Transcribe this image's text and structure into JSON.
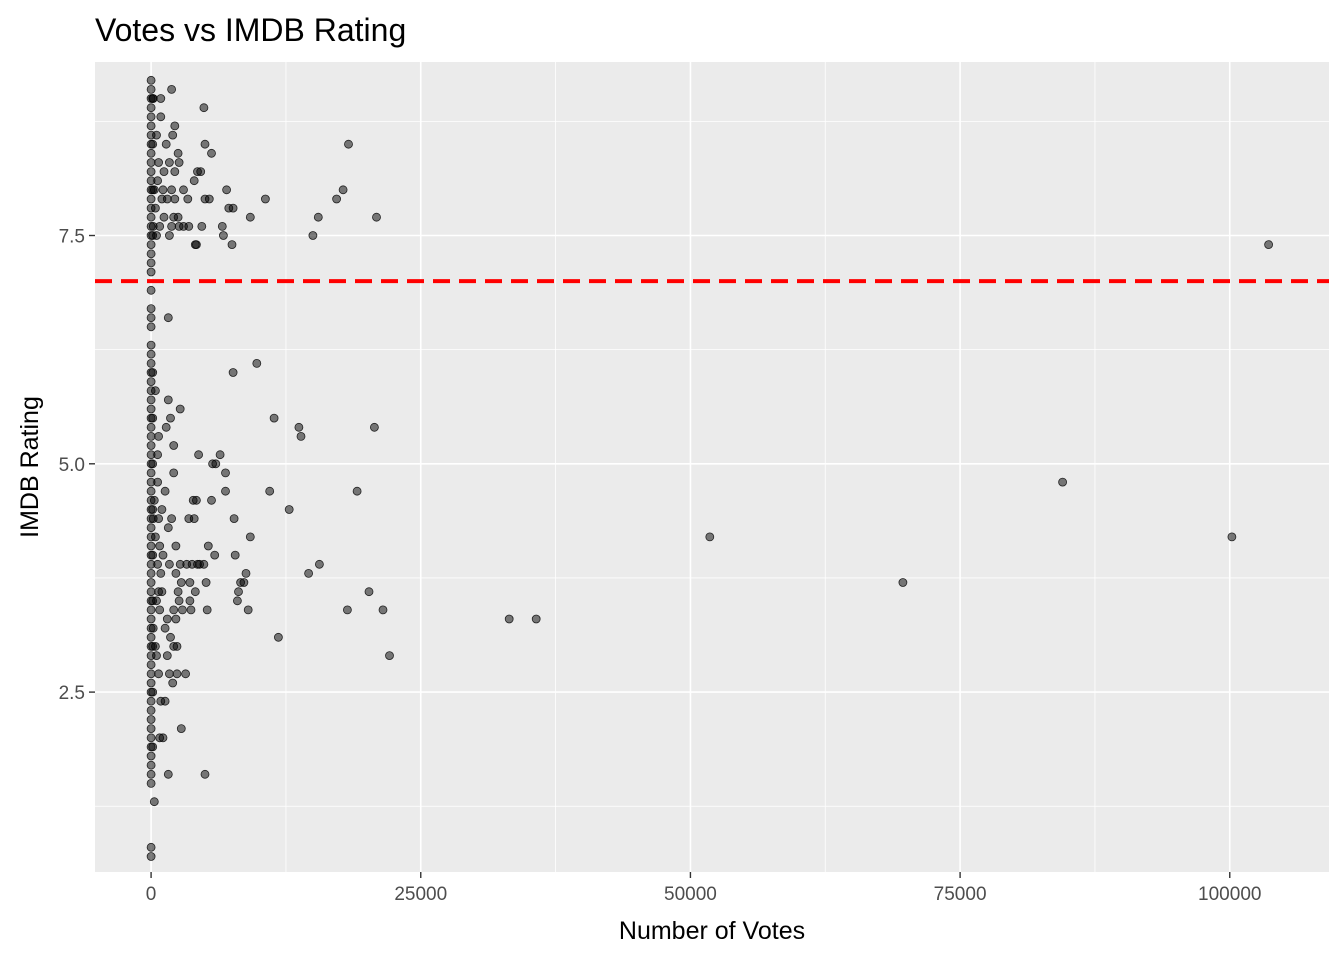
{
  "chart_data": {
    "type": "scatter",
    "title": "Votes vs IMDB Rating",
    "xlabel": "Number of Votes",
    "ylabel": "IMDB Rating",
    "xlim": [
      -5200,
      109200
    ],
    "ylim": [
      0.53,
      9.4
    ],
    "x_ticks": [
      0,
      25000,
      50000,
      75000,
      100000
    ],
    "x_tick_labels": [
      "0",
      "25000",
      "50000",
      "75000",
      "100000"
    ],
    "y_ticks": [
      2.5,
      5.0,
      7.5
    ],
    "y_tick_labels": [
      "2.5",
      "5.0",
      "7.5"
    ],
    "grid": true,
    "background": "#ebebeb",
    "grid_color": "#ffffff",
    "point_color": "#000000",
    "point_alpha": 0.5,
    "reference_line": {
      "orientation": "horizontal",
      "y": 7.0,
      "style": "dashed",
      "color": "#ff0000"
    },
    "points": [
      [
        103600,
        7.4
      ],
      [
        100200,
        4.2
      ],
      [
        84500,
        4.8
      ],
      [
        69700,
        3.7
      ],
      [
        51800,
        4.2
      ],
      [
        35700,
        3.3
      ],
      [
        33200,
        3.3
      ],
      [
        22100,
        2.9
      ],
      [
        21500,
        3.4
      ],
      [
        20900,
        7.7
      ],
      [
        20700,
        5.4
      ],
      [
        20200,
        3.6
      ],
      [
        19100,
        4.7
      ],
      [
        18300,
        8.5
      ],
      [
        18200,
        3.4
      ],
      [
        17800,
        8.0
      ],
      [
        17200,
        7.9
      ],
      [
        15600,
        3.9
      ],
      [
        15500,
        7.7
      ],
      [
        15000,
        7.5
      ],
      [
        14600,
        3.8
      ],
      [
        13900,
        5.3
      ],
      [
        13700,
        5.4
      ],
      [
        12800,
        4.5
      ],
      [
        11800,
        3.1
      ],
      [
        11400,
        5.5
      ],
      [
        11000,
        4.7
      ],
      [
        10600,
        7.9
      ],
      [
        9800,
        6.1
      ],
      [
        9200,
        4.2
      ],
      [
        9200,
        7.7
      ],
      [
        9000,
        3.4
      ],
      [
        8800,
        3.8
      ],
      [
        8600,
        3.7
      ],
      [
        8300,
        3.7
      ],
      [
        8100,
        3.6
      ],
      [
        8000,
        3.5
      ],
      [
        7800,
        4.0
      ],
      [
        7700,
        4.4
      ],
      [
        7600,
        6.0
      ],
      [
        7600,
        7.8
      ],
      [
        7500,
        7.4
      ],
      [
        7200,
        7.8
      ],
      [
        7000,
        8.0
      ],
      [
        6900,
        4.9
      ],
      [
        6900,
        4.7
      ],
      [
        6700,
        7.5
      ],
      [
        6600,
        7.6
      ],
      [
        6400,
        5.1
      ],
      [
        6000,
        5.0
      ],
      [
        5900,
        4.0
      ],
      [
        5700,
        5.0
      ],
      [
        5600,
        8.4
      ],
      [
        5600,
        4.6
      ],
      [
        5400,
        7.9
      ],
      [
        5300,
        4.1
      ],
      [
        5200,
        3.4
      ],
      [
        5100,
        3.7
      ],
      [
        5000,
        1.6
      ],
      [
        5000,
        7.9
      ],
      [
        5000,
        8.5
      ],
      [
        4900,
        3.9
      ],
      [
        4900,
        8.9
      ],
      [
        4700,
        7.6
      ],
      [
        4600,
        8.2
      ],
      [
        4500,
        3.9
      ],
      [
        4400,
        5.1
      ],
      [
        4300,
        3.9
      ],
      [
        4300,
        8.2
      ],
      [
        4200,
        4.6
      ],
      [
        4200,
        7.4
      ],
      [
        4100,
        7.4
      ],
      [
        4100,
        3.6
      ],
      [
        4000,
        4.4
      ],
      [
        4000,
        8.1
      ],
      [
        3900,
        4.6
      ],
      [
        3800,
        3.9
      ],
      [
        3700,
        3.4
      ],
      [
        3600,
        3.5
      ],
      [
        3600,
        3.7
      ],
      [
        3500,
        4.4
      ],
      [
        3500,
        7.6
      ],
      [
        3400,
        7.9
      ],
      [
        3300,
        3.9
      ],
      [
        3200,
        2.7
      ],
      [
        3000,
        7.6
      ],
      [
        3000,
        8.0
      ],
      [
        2900,
        3.4
      ],
      [
        2800,
        3.7
      ],
      [
        2800,
        2.1
      ],
      [
        2700,
        5.6
      ],
      [
        2700,
        3.9
      ],
      [
        2600,
        3.5
      ],
      [
        2600,
        7.6
      ],
      [
        2600,
        8.3
      ],
      [
        2500,
        3.6
      ],
      [
        2500,
        7.7
      ],
      [
        2500,
        8.4
      ],
      [
        2400,
        2.7
      ],
      [
        2400,
        3.0
      ],
      [
        2300,
        3.3
      ],
      [
        2300,
        3.8
      ],
      [
        2300,
        4.1
      ],
      [
        2200,
        7.9
      ],
      [
        2200,
        8.2
      ],
      [
        2200,
        8.7
      ],
      [
        2100,
        3.4
      ],
      [
        2100,
        3.0
      ],
      [
        2100,
        5.2
      ],
      [
        2100,
        4.9
      ],
      [
        2100,
        7.7
      ],
      [
        2000,
        8.6
      ],
      [
        2000,
        2.6
      ],
      [
        1900,
        9.1
      ],
      [
        1900,
        4.4
      ],
      [
        1900,
        7.6
      ],
      [
        1900,
        8.0
      ],
      [
        1800,
        5.5
      ],
      [
        1800,
        3.1
      ],
      [
        1700,
        3.9
      ],
      [
        1700,
        2.7
      ],
      [
        1700,
        7.5
      ],
      [
        1700,
        8.3
      ],
      [
        1600,
        6.6
      ],
      [
        1600,
        1.6
      ],
      [
        1600,
        5.7
      ],
      [
        1600,
        4.3
      ],
      [
        1500,
        2.9
      ],
      [
        1500,
        3.3
      ],
      [
        1500,
        7.9
      ],
      [
        1400,
        5.4
      ],
      [
        1400,
        8.5
      ],
      [
        1300,
        4.7
      ],
      [
        1300,
        3.2
      ],
      [
        1300,
        2.4
      ],
      [
        1200,
        8.2
      ],
      [
        1200,
        7.7
      ],
      [
        1100,
        2.0
      ],
      [
        1100,
        4.0
      ],
      [
        1100,
        8.0
      ],
      [
        1000,
        3.6
      ],
      [
        1000,
        4.5
      ],
      [
        1000,
        7.9
      ],
      [
        900,
        9.0
      ],
      [
        900,
        2.4
      ],
      [
        900,
        3.8
      ],
      [
        900,
        8.8
      ],
      [
        800,
        4.1
      ],
      [
        800,
        2.0
      ],
      [
        800,
        3.4
      ],
      [
        800,
        7.6
      ],
      [
        700,
        5.3
      ],
      [
        700,
        4.4
      ],
      [
        700,
        2.7
      ],
      [
        700,
        3.6
      ],
      [
        700,
        8.3
      ],
      [
        600,
        5.1
      ],
      [
        600,
        3.9
      ],
      [
        600,
        4.8
      ],
      [
        600,
        8.1
      ],
      [
        500,
        2.9
      ],
      [
        500,
        3.5
      ],
      [
        500,
        7.5
      ],
      [
        500,
        8.6
      ],
      [
        400,
        4.2
      ],
      [
        400,
        3.0
      ],
      [
        400,
        5.8
      ],
      [
        400,
        7.8
      ],
      [
        300,
        1.3
      ],
      [
        300,
        8.0
      ],
      [
        300,
        4.6
      ],
      [
        200,
        9.0
      ],
      [
        200,
        3.2
      ],
      [
        200,
        4.4
      ],
      [
        200,
        7.6
      ],
      [
        0,
        0.7
      ],
      [
        0,
        0.8
      ],
      [
        0,
        1.5
      ],
      [
        0,
        1.6
      ],
      [
        0,
        1.7
      ],
      [
        0,
        1.8
      ],
      [
        0,
        1.9
      ],
      [
        0,
        2.0
      ],
      [
        0,
        2.1
      ],
      [
        0,
        2.2
      ],
      [
        0,
        2.3
      ],
      [
        0,
        2.4
      ],
      [
        0,
        2.5
      ],
      [
        0,
        2.6
      ],
      [
        0,
        2.7
      ],
      [
        0,
        2.8
      ],
      [
        0,
        2.9
      ],
      [
        0,
        3.0
      ],
      [
        0,
        3.1
      ],
      [
        0,
        3.2
      ],
      [
        0,
        3.3
      ],
      [
        0,
        3.4
      ],
      [
        0,
        3.5
      ],
      [
        0,
        3.6
      ],
      [
        0,
        3.7
      ],
      [
        0,
        3.8
      ],
      [
        0,
        3.9
      ],
      [
        0,
        4.0
      ],
      [
        0,
        4.1
      ],
      [
        0,
        4.2
      ],
      [
        0,
        4.3
      ],
      [
        0,
        4.4
      ],
      [
        0,
        4.5
      ],
      [
        0,
        4.6
      ],
      [
        0,
        4.7
      ],
      [
        0,
        4.8
      ],
      [
        0,
        4.9
      ],
      [
        0,
        5.0
      ],
      [
        0,
        5.1
      ],
      [
        0,
        5.2
      ],
      [
        0,
        5.3
      ],
      [
        0,
        5.4
      ],
      [
        0,
        5.5
      ],
      [
        0,
        5.6
      ],
      [
        0,
        5.7
      ],
      [
        0,
        5.8
      ],
      [
        0,
        5.9
      ],
      [
        0,
        6.0
      ],
      [
        0,
        6.1
      ],
      [
        0,
        6.2
      ],
      [
        0,
        6.3
      ],
      [
        0,
        6.5
      ],
      [
        0,
        6.6
      ],
      [
        0,
        6.7
      ],
      [
        0,
        6.9
      ],
      [
        0,
        7.1
      ],
      [
        0,
        7.2
      ],
      [
        0,
        7.3
      ],
      [
        0,
        7.4
      ],
      [
        0,
        7.5
      ],
      [
        0,
        7.6
      ],
      [
        0,
        7.7
      ],
      [
        0,
        7.8
      ],
      [
        0,
        7.9
      ],
      [
        0,
        8.0
      ],
      [
        0,
        8.1
      ],
      [
        0,
        8.2
      ],
      [
        0,
        8.3
      ],
      [
        0,
        8.4
      ],
      [
        0,
        8.5
      ],
      [
        0,
        8.6
      ],
      [
        0,
        8.7
      ],
      [
        0,
        8.8
      ],
      [
        0,
        8.9
      ],
      [
        0,
        9.0
      ],
      [
        0,
        9.1
      ],
      [
        0,
        9.2
      ],
      [
        150,
        1.9
      ],
      [
        150,
        2.5
      ],
      [
        150,
        3.0
      ],
      [
        150,
        3.5
      ],
      [
        150,
        4.0
      ],
      [
        150,
        4.5
      ],
      [
        150,
        5.0
      ],
      [
        150,
        5.5
      ],
      [
        150,
        6.0
      ],
      [
        150,
        7.5
      ],
      [
        150,
        8.0
      ],
      [
        150,
        8.5
      ],
      [
        150,
        9.0
      ]
    ]
  }
}
